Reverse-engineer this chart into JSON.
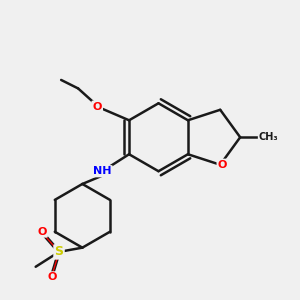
{
  "bg_color": "#f0f0f0",
  "bond_color": "#1a1a1a",
  "bond_width": 1.8,
  "atom_colors": {
    "O": "#ff0000",
    "N": "#0000ff",
    "S": "#cccc00",
    "C": "#1a1a1a",
    "H": "#4a8080"
  },
  "figsize": [
    3.0,
    3.0
  ],
  "dpi": 100
}
